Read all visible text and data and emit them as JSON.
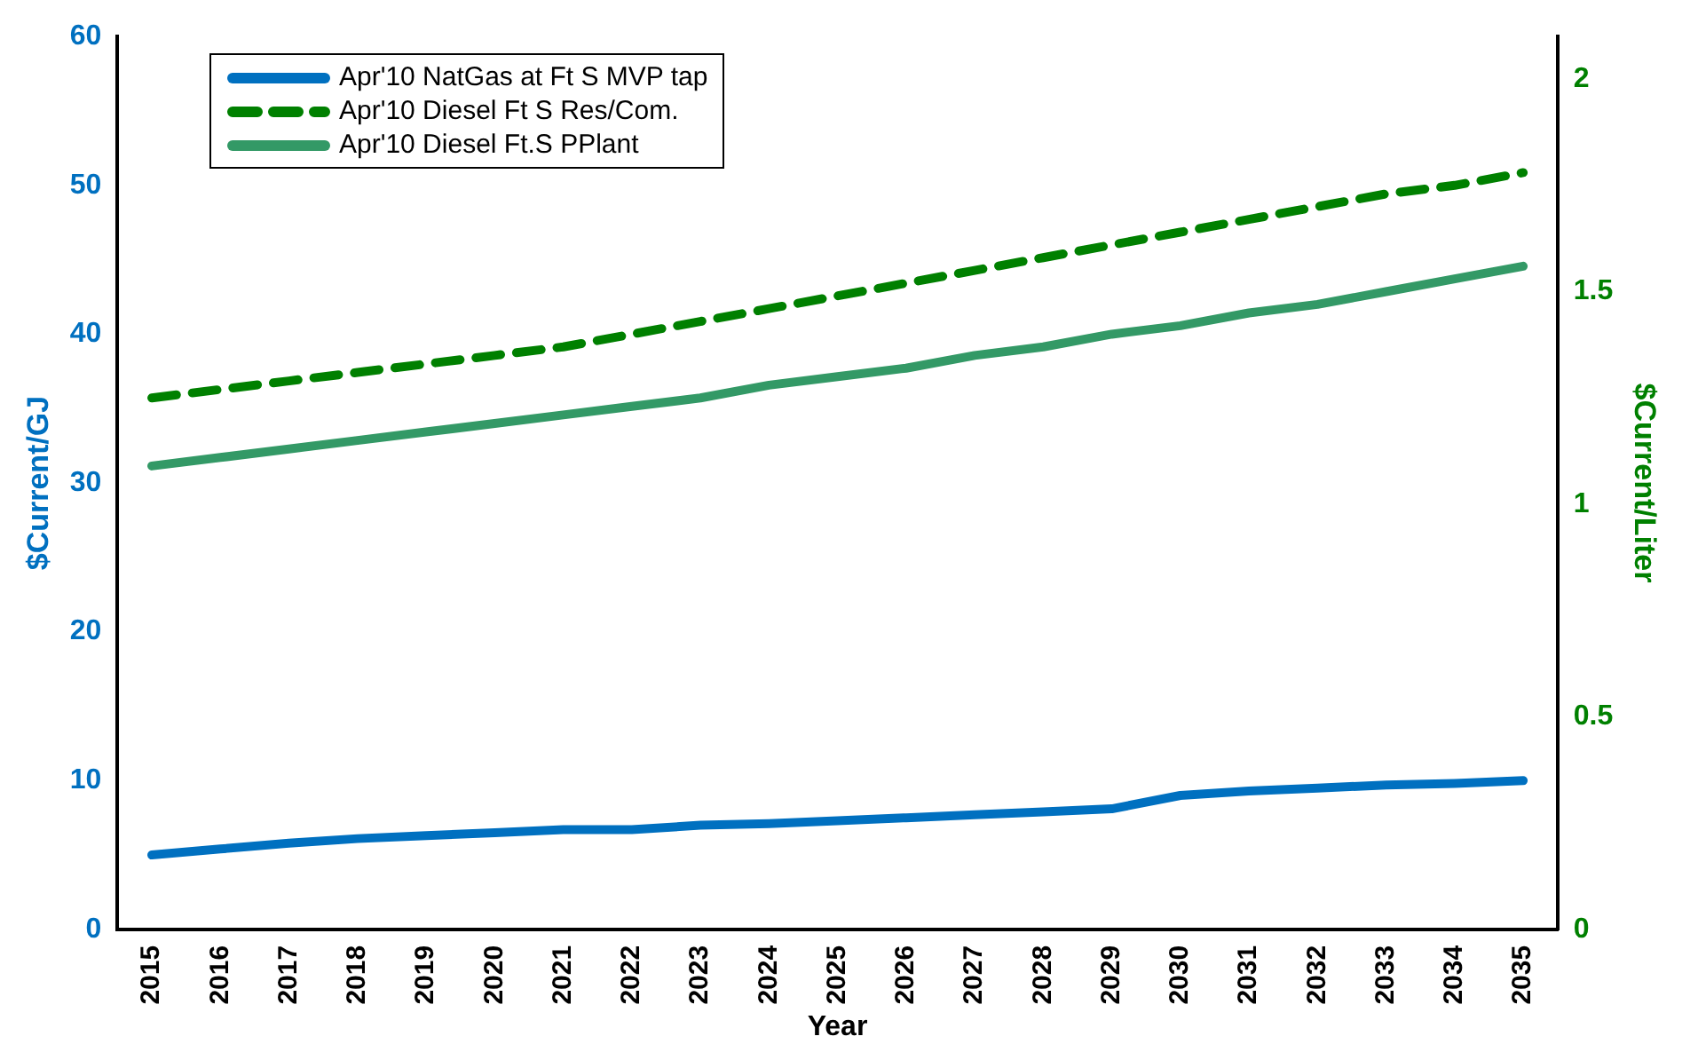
{
  "chart_data": {
    "type": "line",
    "xlabel": "Year",
    "ylabel": "$Current/GJ",
    "y2label": "$Current/Liter",
    "categories": [
      "2015",
      "2016",
      "2017",
      "2018",
      "2019",
      "2020",
      "2021",
      "2022",
      "2023",
      "2024",
      "2025",
      "2026",
      "2027",
      "2028",
      "2029",
      "2030",
      "2031",
      "2032",
      "2033",
      "2034",
      "2035"
    ],
    "series": [
      {
        "name": "Apr'10 NatGas at Ft S MVP tap",
        "color": "#0070c0",
        "line_style": "solid",
        "values": [
          5,
          5.4,
          5.8,
          6.1,
          6.3,
          6.5,
          6.7,
          6.7,
          7.0,
          7.1,
          7.3,
          7.5,
          7.7,
          7.9,
          8.1,
          9.0,
          9.3,
          9.5,
          9.7,
          9.8,
          10.0
        ]
      },
      {
        "name": "Apr'10 Diesel Ft S Res/Com.",
        "color": "#008000",
        "line_style": "dashed",
        "axis": "y2",
        "values": [
          1.25,
          1.27,
          1.29,
          1.31,
          1.33,
          1.35,
          1.37,
          1.4,
          1.43,
          1.46,
          1.49,
          1.52,
          1.55,
          1.58,
          1.61,
          1.64,
          1.67,
          1.7,
          1.73,
          1.75,
          1.78
        ]
      },
      {
        "name": "Apr'10 Diesel Ft.S PPlant",
        "color": "#339966",
        "line_style": "solid",
        "axis": "y2",
        "values": [
          1.09,
          1.11,
          1.13,
          1.15,
          1.17,
          1.19,
          1.21,
          1.23,
          1.25,
          1.28,
          1.3,
          1.32,
          1.35,
          1.37,
          1.4,
          1.42,
          1.45,
          1.47,
          1.5,
          1.53,
          1.56
        ]
      }
    ],
    "ylim": [
      0,
      60
    ],
    "yticks": [
      0,
      10,
      20,
      30,
      40,
      50,
      60
    ],
    "y2lim": [
      0,
      2.1
    ],
    "y2ticks": [
      0,
      0.5,
      1,
      1.5,
      2
    ],
    "grid": false,
    "legend": "top left",
    "marker": "none"
  }
}
